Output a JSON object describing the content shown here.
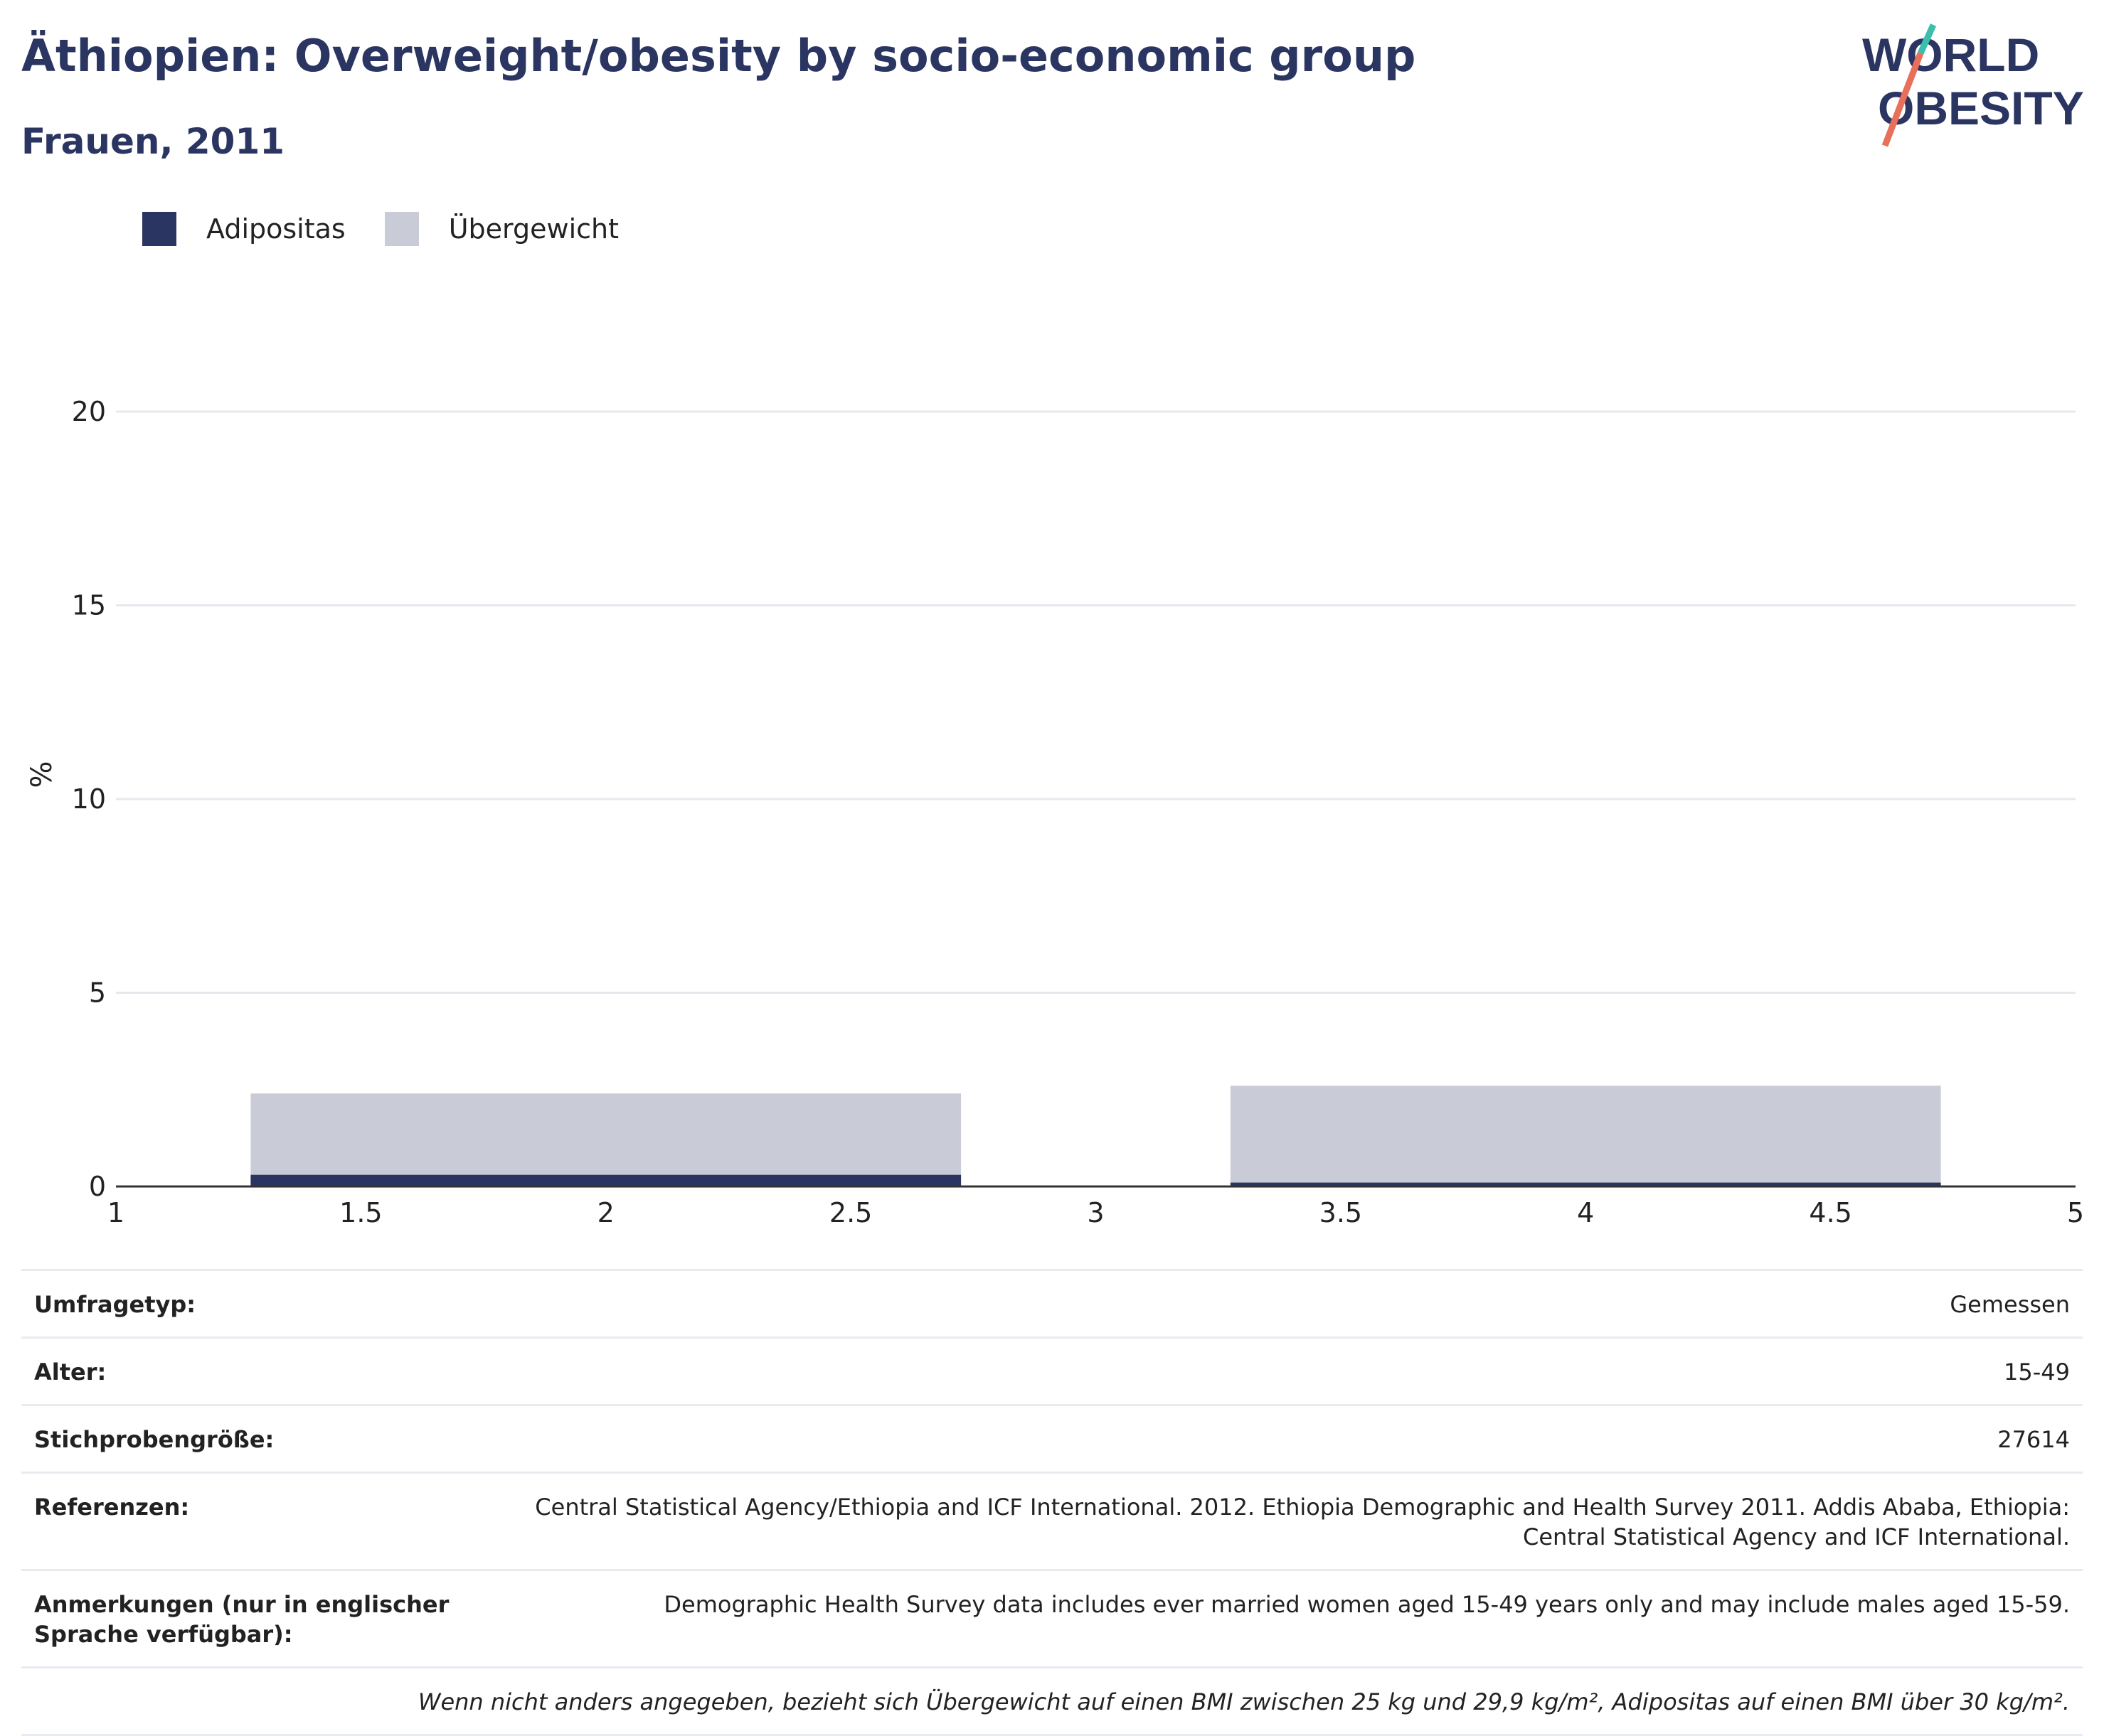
{
  "title": "Äthiopien: Overweight/obesity by socio-economic group",
  "subtitle": "Frauen, 2011",
  "logo": {
    "line1": "WORLD",
    "line2": "OBESITY",
    "colors": [
      "#2b3561",
      "#3bbfad",
      "#e8705a"
    ]
  },
  "legend": [
    {
      "label": "Adipositas",
      "color": "#2b3561"
    },
    {
      "label": "Übergewicht",
      "color": "#c9ccd7"
    }
  ],
  "chart_data": {
    "type": "bar",
    "ylabel": "%",
    "xlabel": "",
    "xlim": [
      1,
      5
    ],
    "ylim": [
      0,
      22
    ],
    "x_ticks": [
      "1",
      "1.5",
      "2",
      "2.5",
      "3",
      "3.5",
      "4",
      "4.5",
      "5"
    ],
    "y_ticks": [
      "0",
      "5",
      "10",
      "15",
      "20"
    ],
    "grid": true,
    "legend_position": "top-left",
    "bar_width": 1.45,
    "bar_centers": [
      2,
      4
    ],
    "series": [
      {
        "name": "Übergewicht",
        "color": "#c9ccd7",
        "values": [
          2.4,
          2.6
        ]
      },
      {
        "name": "Adipositas",
        "color": "#2b3561",
        "values": [
          0.3,
          0.1
        ]
      }
    ]
  },
  "table": [
    {
      "label": "Umfragetyp:",
      "value": "Gemessen"
    },
    {
      "label": "Alter:",
      "value": "15-49"
    },
    {
      "label": "Stichprobengröße:",
      "value": "27614"
    },
    {
      "label": "Referenzen:",
      "value": "Central Statistical Agency/Ethiopia and ICF International. 2012. Ethiopia Demographic and Health Survey 2011. Addis Ababa, Ethiopia: Central Statistical Agency and ICF International."
    },
    {
      "label": "Anmerkungen (nur in englischer Sprache verfügbar):",
      "value": "Demographic Health Survey data includes ever married women aged 15-49 years only and may include males aged 15-59."
    }
  ],
  "footnote": "Wenn nicht anders angegeben, bezieht sich Übergewicht auf einen BMI zwischen 25 kg und 29,9 kg/m², Adipositas auf einen BMI über 30 kg/m²."
}
